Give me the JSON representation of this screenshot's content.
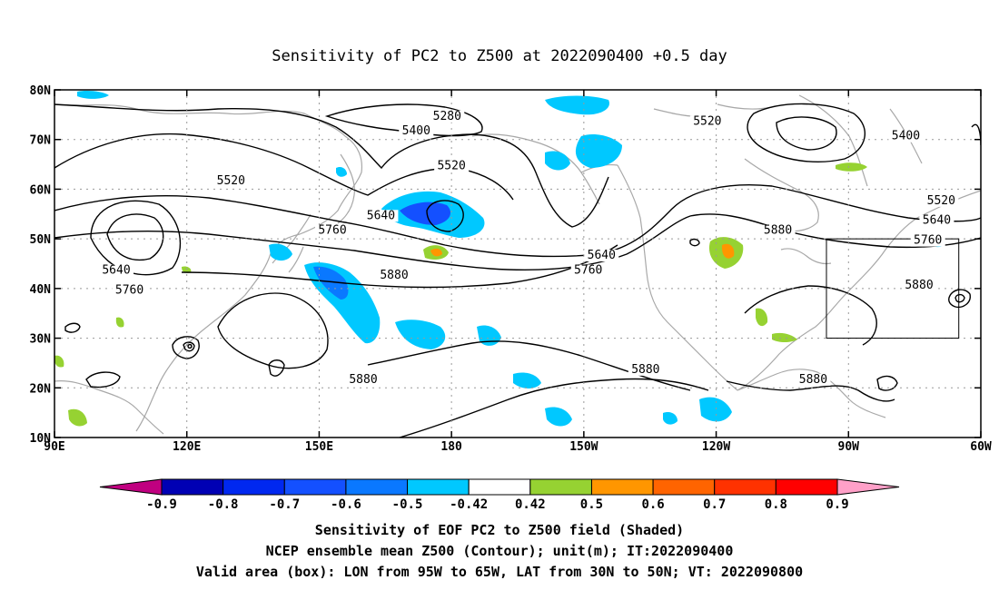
{
  "title": "Sensitivity of PC2 to Z500 at 2022090400 +0.5 day",
  "map": {
    "lon_range": [
      90,
      300
    ],
    "lat_range": [
      10,
      80
    ],
    "lat_ticks": [
      {
        "value": 80,
        "label": "80N"
      },
      {
        "value": 70,
        "label": "70N"
      },
      {
        "value": 60,
        "label": "60N"
      },
      {
        "value": 50,
        "label": "50N"
      },
      {
        "value": 40,
        "label": "40N"
      },
      {
        "value": 30,
        "label": "30N"
      },
      {
        "value": 20,
        "label": "20N"
      },
      {
        "value": 10,
        "label": "10N"
      }
    ],
    "lon_ticks": [
      {
        "value": 90,
        "label": "90E"
      },
      {
        "value": 120,
        "label": "120E"
      },
      {
        "value": 150,
        "label": "150E"
      },
      {
        "value": 180,
        "label": "180"
      },
      {
        "value": 210,
        "label": "150W"
      },
      {
        "value": 240,
        "label": "120W"
      },
      {
        "value": 270,
        "label": "90W"
      },
      {
        "value": 300,
        "label": "60W"
      }
    ],
    "grid_style": "dotted",
    "valid_box": {
      "lon": [
        265,
        295
      ],
      "lat": [
        30,
        50
      ]
    },
    "contour_labels": [
      {
        "text": "5280",
        "lon": 179,
        "lat": 74
      },
      {
        "text": "5400",
        "lon": 172,
        "lat": 71
      },
      {
        "text": "5520",
        "lon": 238,
        "lat": 73
      },
      {
        "text": "5400",
        "lon": 283,
        "lat": 70
      },
      {
        "text": "5520",
        "lon": 180,
        "lat": 64
      },
      {
        "text": "5520",
        "lon": 130,
        "lat": 61
      },
      {
        "text": "5640",
        "lon": 164,
        "lat": 54
      },
      {
        "text": "5760",
        "lon": 153,
        "lat": 51
      },
      {
        "text": "5640",
        "lon": 104,
        "lat": 43
      },
      {
        "text": "5760",
        "lon": 107,
        "lat": 39
      },
      {
        "text": "5880",
        "lon": 167,
        "lat": 42
      },
      {
        "text": "5640",
        "lon": 214,
        "lat": 46
      },
      {
        "text": "5760",
        "lon": 211,
        "lat": 43
      },
      {
        "text": "5880",
        "lon": 254,
        "lat": 51
      },
      {
        "text": "5520",
        "lon": 291,
        "lat": 57
      },
      {
        "text": "5640",
        "lon": 290,
        "lat": 53
      },
      {
        "text": "5760",
        "lon": 288,
        "lat": 49
      },
      {
        "text": "5880",
        "lon": 286,
        "lat": 40
      },
      {
        "text": "5880",
        "lon": 224,
        "lat": 23
      },
      {
        "text": "5880",
        "lon": 160,
        "lat": 21
      },
      {
        "text": "5880",
        "lon": 262,
        "lat": 21
      }
    ]
  },
  "colorbar": {
    "colors": [
      "#c00080",
      "#0000b4",
      "#0028f0",
      "#1450ff",
      "#0a78ff",
      "#00c8ff",
      "#ffffff",
      "#96d232",
      "#ff9600",
      "#ff6400",
      "#ff3200",
      "#ff0000",
      "#ffa0c8"
    ],
    "labels": [
      "-0.9",
      "-0.8",
      "-0.7",
      "-0.6",
      "-0.5",
      "-0.42",
      "0.42",
      "0.5",
      "0.6",
      "0.7",
      "0.8",
      "0.9"
    ]
  },
  "captions": {
    "line1": "Sensitivity of EOF PC2 to Z500 field (Shaded)",
    "line2": "NCEP ensemble mean Z500 (Contour); unit(m); IT:2022090400",
    "line3": "Valid area (box): LON from 95W to 65W, LAT from 30N to 50N; VT: 2022090800"
  }
}
